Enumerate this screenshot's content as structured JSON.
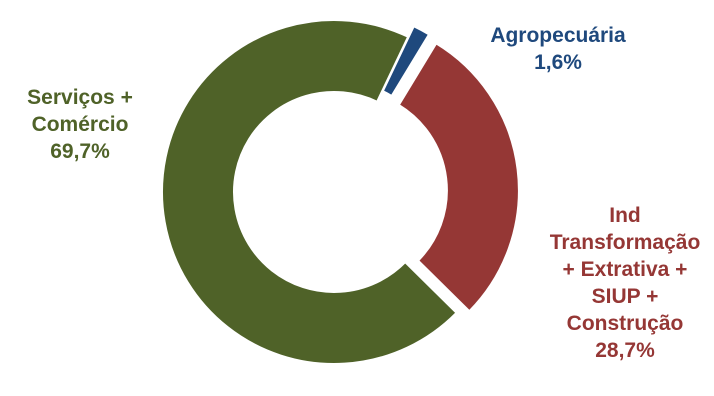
{
  "chart_data": {
    "type": "pie",
    "style": "donut",
    "slices": [
      {
        "label_lines": [
          "Serviços +",
          "Comércio"
        ],
        "value": 69.7,
        "value_label": "69,7%",
        "color": "#4f6228"
      },
      {
        "label_lines": [
          "Agropecuária"
        ],
        "value": 1.6,
        "value_label": "1,6%",
        "color": "#1f497d"
      },
      {
        "label_lines": [
          "Ind",
          "Transformação",
          "+ Extrativa +",
          "SIUP +",
          "Construção"
        ],
        "value": 28.7,
        "value_label": "28,7%",
        "color": "#953735"
      }
    ]
  }
}
